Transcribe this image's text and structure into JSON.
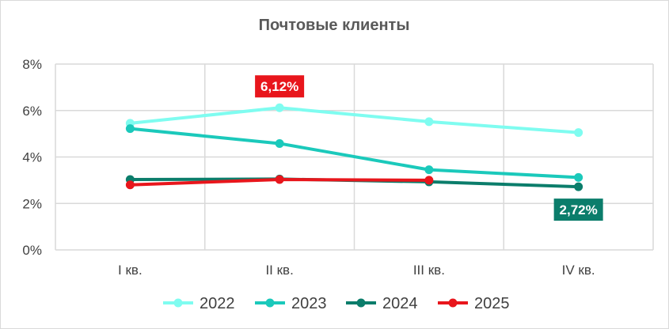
{
  "chart_data": {
    "type": "line",
    "title": "Почтовые клиенты",
    "xlabel": "",
    "ylabel": "",
    "categories": [
      "I кв.",
      "II кв.",
      "III кв.",
      "IV кв."
    ],
    "ylim": [
      0,
      8
    ],
    "yticks": [
      0,
      2,
      4,
      6,
      8
    ],
    "ytick_labels": [
      "0%",
      "2%",
      "4%",
      "6%",
      "8%"
    ],
    "grid": true,
    "legend_position": "bottom",
    "series": [
      {
        "name": "2022",
        "color": "#7ffcf0",
        "values": [
          5.45,
          6.12,
          5.52,
          5.05
        ]
      },
      {
        "name": "2023",
        "color": "#1bc9bb",
        "values": [
          5.22,
          4.58,
          3.45,
          3.12
        ]
      },
      {
        "name": "2024",
        "color": "#0b7d6b",
        "values": [
          3.03,
          3.05,
          2.93,
          2.72
        ]
      },
      {
        "name": "2025",
        "color": "#e8161c",
        "values": [
          2.8,
          3.03,
          3.0,
          null
        ]
      }
    ],
    "annotations": [
      {
        "text": "6,12%",
        "series": 0,
        "point": 1,
        "background": "#e8161c",
        "placement": "above"
      },
      {
        "text": "2,72%",
        "series": 2,
        "point": 3,
        "background": "#0b7d6b",
        "placement": "below"
      }
    ]
  }
}
